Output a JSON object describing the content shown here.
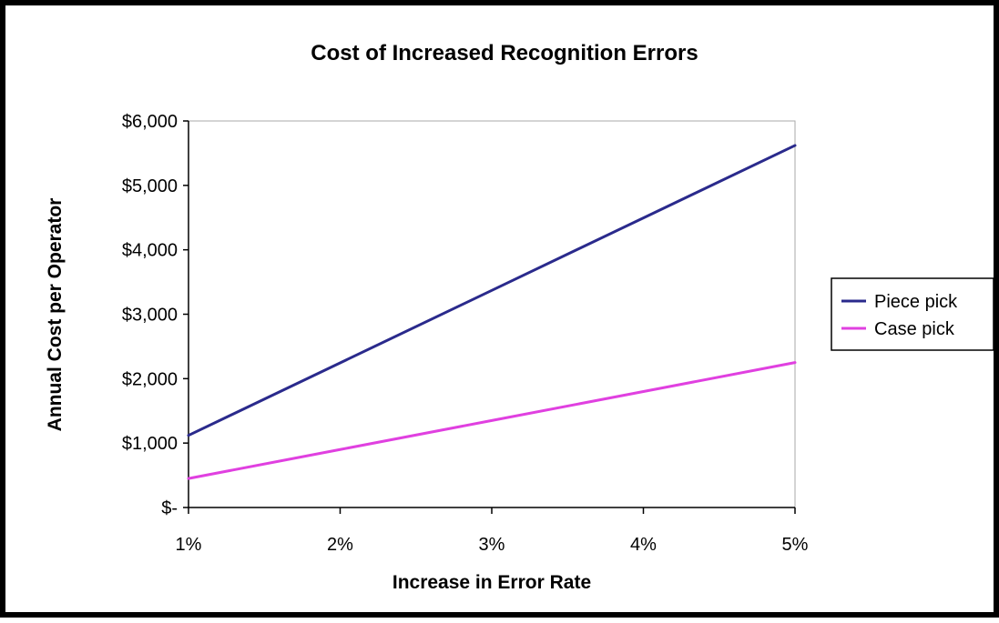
{
  "chart_data": {
    "type": "line",
    "title": "Cost of Increased Recognition Errors",
    "xlabel": "Increase in Error Rate",
    "ylabel": "Annual Cost per Operator",
    "x": [
      0.01,
      0.02,
      0.03,
      0.04,
      0.05
    ],
    "x_tick_labels": [
      "1%",
      "2%",
      "3%",
      "4%",
      "5%"
    ],
    "xlim": [
      0.01,
      0.05
    ],
    "ylim": [
      0,
      6000
    ],
    "y_ticks": [
      0,
      1000,
      2000,
      3000,
      4000,
      5000,
      6000
    ],
    "y_tick_labels": [
      "$-",
      "$1,000",
      "$2,000",
      "$3,000",
      "$4,000",
      "$5,000",
      "$6,000"
    ],
    "grid": false,
    "legend_position": "right",
    "series": [
      {
        "name": "Piece pick",
        "color": "#2a2a8c",
        "values": [
          1120,
          2245,
          3370,
          4495,
          5620
        ]
      },
      {
        "name": "Case pick",
        "color": "#e040e0",
        "values": [
          450,
          900,
          1350,
          1800,
          2250
        ]
      }
    ]
  }
}
